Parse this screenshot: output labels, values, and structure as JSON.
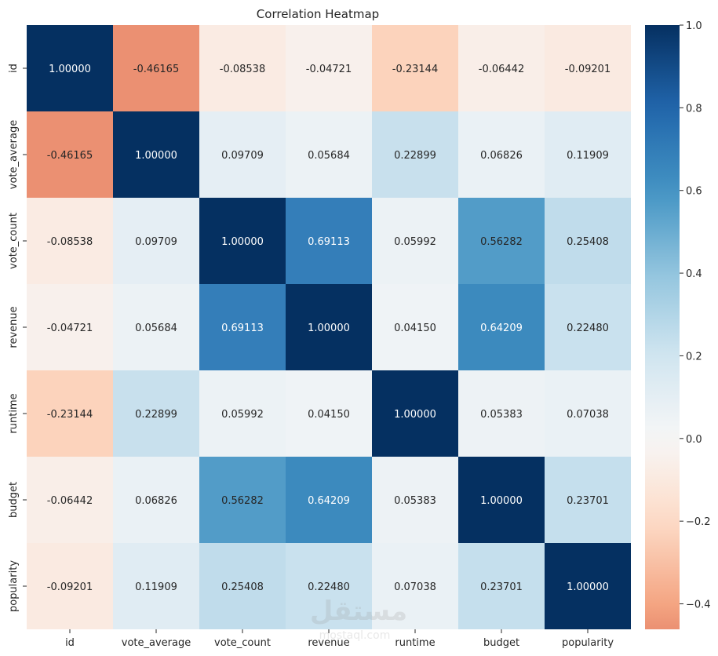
{
  "chart_data": {
    "type": "heatmap",
    "title": "Correlation Heatmap",
    "variables": [
      "id",
      "vote_average",
      "vote_count",
      "revenue",
      "runtime",
      "budget",
      "popularity"
    ],
    "matrix": [
      [
        1.0,
        -0.46165,
        -0.08538,
        -0.04721,
        -0.23144,
        -0.06442,
        -0.09201
      ],
      [
        -0.46165,
        1.0,
        0.09709,
        0.05684,
        0.22899,
        0.06826,
        0.11909
      ],
      [
        -0.08538,
        0.09709,
        1.0,
        0.69113,
        0.05992,
        0.56282,
        0.25408
      ],
      [
        -0.04721,
        0.05684,
        0.69113,
        1.0,
        0.0415,
        0.64209,
        0.2248
      ],
      [
        -0.23144,
        0.22899,
        0.05992,
        0.0415,
        1.0,
        0.05383,
        0.07038
      ],
      [
        -0.06442,
        0.06826,
        0.56282,
        0.64209,
        0.05383,
        1.0,
        0.23701
      ],
      [
        -0.09201,
        0.11909,
        0.25408,
        0.2248,
        0.07038,
        0.23701,
        1.0
      ]
    ],
    "annotation_format": "5 decimals",
    "colormap": "RdBu_r (centered at 0)",
    "colorbar": {
      "range": [
        -0.46165,
        1.0
      ],
      "ticks": [
        -0.4,
        -0.2,
        0.0,
        0.2,
        0.4,
        0.6,
        0.8,
        1.0
      ],
      "tick_labels": [
        "−0.4",
        "−0.2",
        "0.0",
        "0.2",
        "0.4",
        "0.6",
        "0.8",
        "1.0"
      ]
    }
  },
  "watermark": {
    "arabic": "مستقل",
    "latin": "mostaql.com"
  }
}
